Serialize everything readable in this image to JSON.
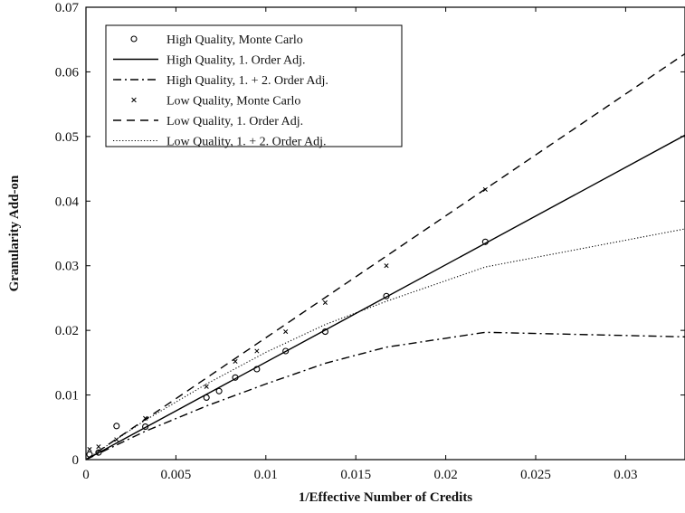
{
  "chart_data": {
    "type": "line",
    "title": "",
    "xlabel": "1/Effective Number of Credits",
    "ylabel": "Granularity Add-on",
    "xlim": [
      0,
      0.0333
    ],
    "ylim": [
      0,
      0.07
    ],
    "x_ticks": [
      0,
      0.005,
      0.01,
      0.015,
      0.02,
      0.025,
      0.03
    ],
    "x_tick_labels": [
      "0",
      "0.005",
      "0.01",
      "0.015",
      "0.02",
      "0.025",
      "0.03"
    ],
    "y_ticks": [
      0,
      0.01,
      0.02,
      0.03,
      0.04,
      0.05,
      0.06,
      0.07
    ],
    "y_tick_labels": [
      "0",
      "0.01",
      "0.02",
      "0.03",
      "0.04",
      "0.05",
      "0.06",
      "0.07"
    ],
    "grid": false,
    "legend_position": "top-left",
    "series": [
      {
        "name": "High Quality, Monte Carlo",
        "style": "circle-marker",
        "points": [
          [
            0.0002,
            0.0008
          ],
          [
            0.0007,
            0.0011
          ],
          [
            0.0017,
            0.0052
          ],
          [
            0.0033,
            0.0051
          ],
          [
            0.0067,
            0.0096
          ],
          [
            0.0074,
            0.0106
          ],
          [
            0.0083,
            0.0127
          ],
          [
            0.0095,
            0.014
          ],
          [
            0.0111,
            0.0168
          ],
          [
            0.0133,
            0.0198
          ],
          [
            0.0167,
            0.0253
          ],
          [
            0.0222,
            0.0337
          ]
        ]
      },
      {
        "name": "High Quality, 1. Order Adj.",
        "style": "solid",
        "points": [
          [
            0,
            0
          ],
          [
            0.0333,
            0.0502
          ]
        ]
      },
      {
        "name": "High Quality, 1. + 2. Order Adj.",
        "style": "dash-dot",
        "points": [
          [
            0,
            0
          ],
          [
            0.0033,
            0.0044
          ],
          [
            0.0067,
            0.0083
          ],
          [
            0.01,
            0.0117
          ],
          [
            0.0133,
            0.0149
          ],
          [
            0.0167,
            0.0174
          ],
          [
            0.0222,
            0.0197
          ],
          [
            0.0333,
            0.019
          ]
        ]
      },
      {
        "name": "Low Quality, Monte Carlo",
        "style": "x-marker",
        "points": [
          [
            0.0002,
            0.0016
          ],
          [
            0.0007,
            0.002
          ],
          [
            0.0017,
            0.0031
          ],
          [
            0.0033,
            0.0064
          ],
          [
            0.0067,
            0.0113
          ],
          [
            0.0083,
            0.0152
          ],
          [
            0.0095,
            0.0168
          ],
          [
            0.0111,
            0.0198
          ],
          [
            0.0133,
            0.0243
          ],
          [
            0.0167,
            0.03
          ],
          [
            0.0222,
            0.0418
          ]
        ]
      },
      {
        "name": "Low Quality, 1. Order Adj.",
        "style": "dashed",
        "points": [
          [
            0,
            0
          ],
          [
            0.0333,
            0.0628
          ]
        ]
      },
      {
        "name": "Low Quality, 1. + 2. Order Adj.",
        "style": "dotted",
        "points": [
          [
            0,
            0
          ],
          [
            0.0033,
            0.0061
          ],
          [
            0.0067,
            0.0117
          ],
          [
            0.01,
            0.0166
          ],
          [
            0.0133,
            0.0209
          ],
          [
            0.0167,
            0.0245
          ],
          [
            0.0222,
            0.0298
          ],
          [
            0.0333,
            0.0357
          ]
        ]
      }
    ]
  }
}
